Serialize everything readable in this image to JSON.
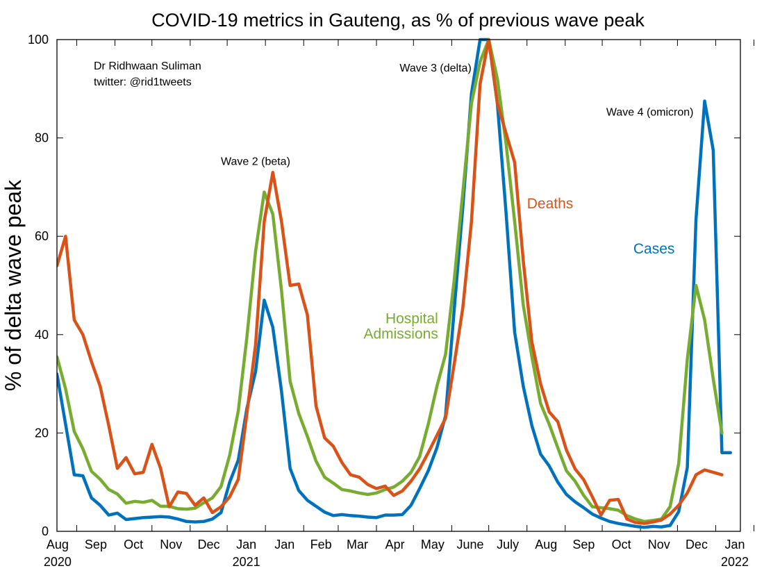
{
  "chart_data": {
    "type": "line",
    "title": "COVID-19 metrics in Gauteng, as % of previous wave peak",
    "ylabel": "% of delta wave peak",
    "xlabel": "",
    "ylim": [
      0,
      100
    ],
    "yticks": [
      0,
      20,
      40,
      60,
      80,
      100
    ],
    "xlim": [
      "2020-07-16",
      "2022-01-21"
    ],
    "month_ticks": [
      {
        "date": "2020-08-01",
        "label": "Aug",
        "year": "2020"
      },
      {
        "date": "2020-09-01",
        "label": "Sep"
      },
      {
        "date": "2020-10-01",
        "label": "Oct"
      },
      {
        "date": "2020-11-01",
        "label": "Nov"
      },
      {
        "date": "2020-12-01",
        "label": "Dec"
      },
      {
        "date": "2021-01-01",
        "label": "Jan",
        "year": "2021"
      },
      {
        "date": "2021-02-01",
        "label": "Jan"
      },
      {
        "date": "2021-03-01",
        "label": "Feb"
      },
      {
        "date": "2021-04-01",
        "label": "Mar"
      },
      {
        "date": "2021-05-01",
        "label": "Apr"
      },
      {
        "date": "2021-06-01",
        "label": "May"
      },
      {
        "date": "2021-07-01",
        "label": "June"
      },
      {
        "date": "2021-08-01",
        "label": "July"
      },
      {
        "date": "2021-09-01",
        "label": "Aug"
      },
      {
        "date": "2021-10-01",
        "label": "Sep"
      },
      {
        "date": "2021-11-01",
        "label": "Oct"
      },
      {
        "date": "2021-12-01",
        "label": "Nov"
      },
      {
        "date": "2022-01-01",
        "label": "Dec"
      },
      {
        "date": "2022-02-01",
        "label": "Jan",
        "year": "2022"
      }
    ],
    "grid": false,
    "legend": "none (direct labels)",
    "series": [
      {
        "name": "Cases",
        "color": "#0072bd",
        "points": [
          [
            "2020-07-16",
            32
          ],
          [
            "2020-07-30",
            11.5
          ],
          [
            "2020-08-06",
            11.3
          ],
          [
            "2020-08-13",
            6.8
          ],
          [
            "2020-08-20",
            5.3
          ],
          [
            "2020-08-27",
            3.3
          ],
          [
            "2020-09-03",
            3.7
          ],
          [
            "2020-09-10",
            2.4
          ],
          [
            "2020-09-17",
            2.6
          ],
          [
            "2020-09-24",
            2.8
          ],
          [
            "2020-10-01",
            2.9
          ],
          [
            "2020-10-08",
            3.0
          ],
          [
            "2020-10-15",
            2.9
          ],
          [
            "2020-10-22",
            2.5
          ],
          [
            "2020-10-29",
            2.0
          ],
          [
            "2020-11-05",
            1.9
          ],
          [
            "2020-11-12",
            2.0
          ],
          [
            "2020-11-19",
            2.5
          ],
          [
            "2020-11-26",
            3.8
          ],
          [
            "2020-12-03",
            10
          ],
          [
            "2020-12-10",
            14.5
          ],
          [
            "2020-12-17",
            25
          ],
          [
            "2020-12-24",
            32.5
          ],
          [
            "2020-12-31",
            47
          ],
          [
            "2021-01-07",
            41.5
          ],
          [
            "2021-01-14",
            28.5
          ],
          [
            "2021-01-21",
            12.8
          ],
          [
            "2021-01-28",
            8.3
          ],
          [
            "2021-02-04",
            6.3
          ],
          [
            "2021-02-11",
            5.1
          ],
          [
            "2021-02-18",
            3.9
          ],
          [
            "2021-02-25",
            3.2
          ],
          [
            "2021-03-04",
            3.4
          ],
          [
            "2021-03-11",
            3.2
          ],
          [
            "2021-03-18",
            3.1
          ],
          [
            "2021-03-25",
            2.9
          ],
          [
            "2021-04-01",
            2.8
          ],
          [
            "2021-04-08",
            3.3
          ],
          [
            "2021-04-15",
            3.3
          ],
          [
            "2021-04-22",
            3.4
          ],
          [
            "2021-04-29",
            5.3
          ],
          [
            "2021-05-06",
            8.7
          ],
          [
            "2021-05-13",
            12.3
          ],
          [
            "2021-05-20",
            17
          ],
          [
            "2021-05-27",
            23.5
          ],
          [
            "2021-06-03",
            45
          ],
          [
            "2021-06-10",
            66
          ],
          [
            "2021-06-17",
            89
          ],
          [
            "2021-06-24",
            100
          ],
          [
            "2021-07-01",
            100
          ],
          [
            "2021-07-08",
            87
          ],
          [
            "2021-07-15",
            65
          ],
          [
            "2021-07-22",
            40.5
          ],
          [
            "2021-07-29",
            29.5
          ],
          [
            "2021-08-05",
            21.5
          ],
          [
            "2021-08-12",
            15.7
          ],
          [
            "2021-08-19",
            13.3
          ],
          [
            "2021-08-26",
            10
          ],
          [
            "2021-09-02",
            7.5
          ],
          [
            "2021-09-09",
            6.0
          ],
          [
            "2021-09-16",
            4.8
          ],
          [
            "2021-09-23",
            3.5
          ],
          [
            "2021-09-30",
            2.7
          ],
          [
            "2021-10-07",
            2.0
          ],
          [
            "2021-10-14",
            1.6
          ],
          [
            "2021-10-21",
            1.3
          ],
          [
            "2021-10-28",
            1.0
          ],
          [
            "2021-11-04",
            0.8
          ],
          [
            "2021-11-11",
            1.0
          ],
          [
            "2021-11-18",
            0.9
          ],
          [
            "2021-11-25",
            1.2
          ],
          [
            "2021-12-02",
            4.0
          ],
          [
            "2021-12-09",
            13
          ],
          [
            "2021-12-16",
            63.5
          ],
          [
            "2021-12-23",
            87.5
          ],
          [
            "2021-12-30",
            77.5
          ],
          [
            "2022-01-06",
            16
          ],
          [
            "2022-01-13",
            16
          ]
        ]
      },
      {
        "name": "Hospital Admissions",
        "color": "#77ac30",
        "points": [
          [
            "2020-07-16",
            35.5
          ],
          [
            "2020-07-23",
            29
          ],
          [
            "2020-07-30",
            20.3
          ],
          [
            "2020-08-06",
            16.8
          ],
          [
            "2020-08-13",
            12.2
          ],
          [
            "2020-08-20",
            10.6
          ],
          [
            "2020-08-27",
            8.5
          ],
          [
            "2020-09-03",
            7.6
          ],
          [
            "2020-09-10",
            5.7
          ],
          [
            "2020-09-17",
            6.1
          ],
          [
            "2020-09-24",
            5.9
          ],
          [
            "2020-10-01",
            6.3
          ],
          [
            "2020-10-08",
            5.1
          ],
          [
            "2020-10-15",
            5.1
          ],
          [
            "2020-10-22",
            4.6
          ],
          [
            "2020-10-29",
            4.5
          ],
          [
            "2020-11-05",
            4.7
          ],
          [
            "2020-11-12",
            5.8
          ],
          [
            "2020-11-19",
            6.8
          ],
          [
            "2020-11-26",
            9.1
          ],
          [
            "2020-12-03",
            15.5
          ],
          [
            "2020-12-10",
            24.5
          ],
          [
            "2020-12-17",
            39.5
          ],
          [
            "2020-12-24",
            57
          ],
          [
            "2020-12-31",
            69
          ],
          [
            "2021-01-07",
            64.5
          ],
          [
            "2021-01-14",
            49
          ],
          [
            "2021-01-21",
            30.5
          ],
          [
            "2021-01-28",
            24
          ],
          [
            "2021-02-04",
            19.3
          ],
          [
            "2021-02-11",
            14.3
          ],
          [
            "2021-02-18",
            11
          ],
          [
            "2021-02-25",
            9.8
          ],
          [
            "2021-03-04",
            8.5
          ],
          [
            "2021-03-11",
            8.2
          ],
          [
            "2021-03-18",
            7.8
          ],
          [
            "2021-03-25",
            7.5
          ],
          [
            "2021-04-01",
            7.8
          ],
          [
            "2021-04-08",
            8.5
          ],
          [
            "2021-04-15",
            9.0
          ],
          [
            "2021-04-22",
            10.2
          ],
          [
            "2021-04-29",
            12
          ],
          [
            "2021-05-06",
            15.2
          ],
          [
            "2021-05-13",
            21.8
          ],
          [
            "2021-05-20",
            29.5
          ],
          [
            "2021-05-27",
            36
          ],
          [
            "2021-06-03",
            51
          ],
          [
            "2021-06-10",
            69
          ],
          [
            "2021-06-17",
            87
          ],
          [
            "2021-06-24",
            95.5
          ],
          [
            "2021-07-01",
            100
          ],
          [
            "2021-07-08",
            92
          ],
          [
            "2021-07-15",
            79
          ],
          [
            "2021-07-22",
            63
          ],
          [
            "2021-07-29",
            46
          ],
          [
            "2021-08-05",
            35.5
          ],
          [
            "2021-08-12",
            26
          ],
          [
            "2021-08-19",
            21.8
          ],
          [
            "2021-08-26",
            17
          ],
          [
            "2021-09-02",
            12.3
          ],
          [
            "2021-09-09",
            10.2
          ],
          [
            "2021-09-16",
            7.3
          ],
          [
            "2021-09-23",
            5.0
          ],
          [
            "2021-09-30",
            4.8
          ],
          [
            "2021-10-07",
            4.6
          ],
          [
            "2021-10-14",
            4.3
          ],
          [
            "2021-10-21",
            3.2
          ],
          [
            "2021-10-28",
            2.5
          ],
          [
            "2021-11-04",
            2.0
          ],
          [
            "2021-11-11",
            2.2
          ],
          [
            "2021-11-18",
            2.5
          ],
          [
            "2021-11-25",
            5.0
          ],
          [
            "2021-12-02",
            13.8
          ],
          [
            "2021-12-09",
            35
          ],
          [
            "2021-12-16",
            50
          ],
          [
            "2021-12-23",
            43
          ],
          [
            "2021-12-30",
            31
          ],
          [
            "2022-01-06",
            20
          ]
        ]
      },
      {
        "name": "Deaths",
        "color": "#d95319",
        "points": [
          [
            "2020-07-16",
            54
          ],
          [
            "2020-07-23",
            60
          ],
          [
            "2020-07-30",
            43
          ],
          [
            "2020-08-06",
            40
          ],
          [
            "2020-08-13",
            34.5
          ],
          [
            "2020-08-20",
            29.5
          ],
          [
            "2020-08-27",
            21.5
          ],
          [
            "2020-09-03",
            12.8
          ],
          [
            "2020-09-10",
            15
          ],
          [
            "2020-09-17",
            11.7
          ],
          [
            "2020-09-24",
            12.0
          ],
          [
            "2020-10-01",
            17.7
          ],
          [
            "2020-10-08",
            12.8
          ],
          [
            "2020-10-15",
            5.0
          ],
          [
            "2020-10-22",
            8.0
          ],
          [
            "2020-10-29",
            7.7
          ],
          [
            "2020-11-05",
            5.3
          ],
          [
            "2020-11-12",
            6.8
          ],
          [
            "2020-11-19",
            3.8
          ],
          [
            "2020-11-26",
            5.0
          ],
          [
            "2020-12-03",
            7.0
          ],
          [
            "2020-12-10",
            10.6
          ],
          [
            "2020-12-17",
            24
          ],
          [
            "2020-12-24",
            38
          ],
          [
            "2020-12-31",
            63
          ],
          [
            "2021-01-07",
            73
          ],
          [
            "2021-01-14",
            63
          ],
          [
            "2021-01-21",
            50
          ],
          [
            "2021-01-28",
            50.3
          ],
          [
            "2021-02-04",
            44
          ],
          [
            "2021-02-11",
            25.5
          ],
          [
            "2021-02-18",
            19
          ],
          [
            "2021-02-25",
            17.3
          ],
          [
            "2021-03-04",
            14
          ],
          [
            "2021-03-11",
            11.5
          ],
          [
            "2021-03-18",
            11
          ],
          [
            "2021-03-25",
            9.5
          ],
          [
            "2021-04-01",
            8.7
          ],
          [
            "2021-04-08",
            9.2
          ],
          [
            "2021-04-15",
            7.3
          ],
          [
            "2021-04-22",
            8.2
          ],
          [
            "2021-04-29",
            10.2
          ],
          [
            "2021-05-06",
            12.7
          ],
          [
            "2021-05-13",
            16
          ],
          [
            "2021-05-20",
            19.5
          ],
          [
            "2021-05-27",
            23
          ],
          [
            "2021-06-03",
            34
          ],
          [
            "2021-06-10",
            45.5
          ],
          [
            "2021-06-17",
            63
          ],
          [
            "2021-06-24",
            91
          ],
          [
            "2021-07-01",
            100
          ],
          [
            "2021-07-08",
            87
          ],
          [
            "2021-07-15",
            81
          ],
          [
            "2021-07-22",
            75
          ],
          [
            "2021-07-29",
            55
          ],
          [
            "2021-08-05",
            38.5
          ],
          [
            "2021-08-12",
            30
          ],
          [
            "2021-08-19",
            24.3
          ],
          [
            "2021-08-26",
            22.3
          ],
          [
            "2021-09-02",
            16.5
          ],
          [
            "2021-09-09",
            12.7
          ],
          [
            "2021-09-16",
            10.5
          ],
          [
            "2021-09-23",
            7.0
          ],
          [
            "2021-09-30",
            3.3
          ],
          [
            "2021-10-07",
            6.3
          ],
          [
            "2021-10-14",
            6.5
          ],
          [
            "2021-10-21",
            2.5
          ],
          [
            "2021-10-28",
            1.8
          ],
          [
            "2021-11-04",
            1.6
          ],
          [
            "2021-11-11",
            1.9
          ],
          [
            "2021-11-18",
            2.3
          ],
          [
            "2021-11-25",
            3.5
          ],
          [
            "2021-12-02",
            5.3
          ],
          [
            "2021-12-09",
            7.8
          ],
          [
            "2021-12-16",
            11.5
          ],
          [
            "2021-12-23",
            12.5
          ],
          [
            "2022-01-06",
            11.5
          ]
        ]
      }
    ],
    "annotations": [
      {
        "text": "Wave 2 (beta)",
        "date": "2020-12-24",
        "y": 74.5,
        "anchor": "middle"
      },
      {
        "text": "Wave 3 (delta)",
        "date": "2021-06-17",
        "y": 93.5,
        "anchor": "end"
      },
      {
        "text": "Wave 4 (omicron)",
        "date": "2021-12-14",
        "y": 84.5,
        "anchor": "end"
      }
    ],
    "series_labels": [
      {
        "series": "Deaths",
        "lines": [
          "Deaths"
        ],
        "date": "2021-08-01",
        "y": 65.7,
        "anchor": "start"
      },
      {
        "series": "Cases",
        "lines": [
          "Cases"
        ],
        "date": "2021-11-12",
        "y": 56.5,
        "anchor": "middle"
      },
      {
        "series": "Hospital Admissions",
        "lines": [
          "Hospital",
          "Admissions"
        ],
        "date": "2021-05-21",
        "y": 42.3,
        "anchor": "end"
      }
    ],
    "credit": [
      "Dr Ridhwaan Suliman",
      "twitter: @rid1tweets"
    ]
  }
}
